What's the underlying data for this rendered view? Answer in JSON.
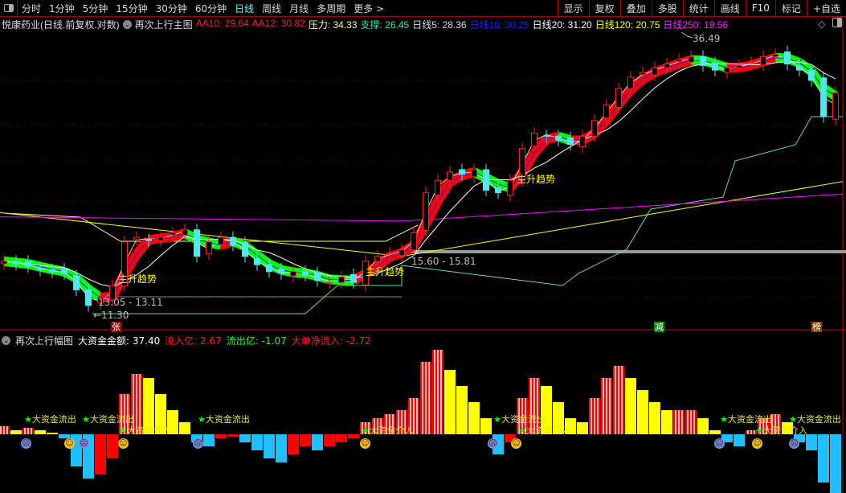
{
  "toolbar": {
    "periods": [
      "分时",
      "1分钟",
      "5分钟",
      "15分钟",
      "30分钟",
      "60分钟",
      "日线",
      "周线",
      "月线",
      "多周期",
      "更多 >"
    ],
    "active": "日线",
    "buttons": [
      "显示",
      "复权",
      "叠加",
      "多股",
      "统计",
      "画线",
      "F10",
      "标记",
      "+自选"
    ]
  },
  "main": {
    "stock_title": "悦康药业(日线.前复权.对数)",
    "indicator": "再次上行主图",
    "values": [
      {
        "label": "AA10: 29.64",
        "color": "#ff2020"
      },
      {
        "label": "AA12: 30.82",
        "color": "#ff2020"
      },
      {
        "label": "压力: 34.33",
        "color": "#ffff80"
      },
      {
        "label": "支撑: 26.45",
        "color": "#40e0a0"
      },
      {
        "label": "日线5: 28.36",
        "color": "#dddddd"
      },
      {
        "label": "日线10: 30.25",
        "color": "#2020ff"
      },
      {
        "label": "日线20: 31.20",
        "color": "#ffffff"
      },
      {
        "label": "日线120: 20.75",
        "color": "#ffff00"
      },
      {
        "label": "日线250: 19.56",
        "color": "#ff20ff"
      }
    ],
    "annotations": {
      "trend1": "主升趋势",
      "trend2": "主升趋势",
      "trend3": "主升趋势",
      "range1": "13.05 - 13.11",
      "low": "←11.30",
      "range2": "15.60 - 15.81",
      "high": "36.49",
      "badge_zhang": "张",
      "badge_jian": "减",
      "badge_bang": "榜"
    }
  },
  "sub": {
    "indicator": "再次上行幅图",
    "values": [
      {
        "label": "大资金金额: 37.40",
        "color": "#ffffff"
      },
      {
        "label": "流入亿: 2.67",
        "color": "#ff2020"
      },
      {
        "label": "流出亿: -1.07",
        "color": "#20ff20"
      },
      {
        "label": "大单净流入: -2.72",
        "color": "#ff2020"
      }
    ],
    "flow_out": "大资金流出",
    "flow_in": "大资金介入"
  },
  "chart_data": {
    "type": "candlestick",
    "scale": "log",
    "closes": [
      14.6,
      14.45,
      14.3,
      14.1,
      14.0,
      13.9,
      13.0,
      12.2,
      12.6,
      13.2,
      15.8,
      16.1,
      15.9,
      16.1,
      16.4,
      16.6,
      14.9,
      15.8,
      16.1,
      15.6,
      14.9,
      14.4,
      14.0,
      13.9,
      14.0,
      13.8,
      13.5,
      13.4,
      13.7,
      13.4,
      14.6,
      14.9,
      15.1,
      15.3,
      16.4,
      19.3,
      20.3,
      21.0,
      20.8,
      21.2,
      19.5,
      19.3,
      20.3,
      23.1,
      24.6,
      24.3,
      23.9,
      23.5,
      24.3,
      25.9,
      27.6,
      29.5,
      30.9,
      31.5,
      32.1,
      32.6,
      33.2,
      33.6,
      32.4,
      31.8,
      32.1,
      32.4,
      32.8,
      33.6,
      33.9,
      32.6,
      31.8,
      30.5,
      26.3,
      29.0
    ],
    "ma120": [
      17.8,
      14.9,
      20.2
    ],
    "ma250": [
      17.5,
      17.2,
      19.2
    ],
    "high": 36.49,
    "low": 11.3,
    "flow": [
      10,
      5,
      8,
      5,
      2,
      -5,
      -40,
      -55,
      -50,
      -30,
      50,
      75,
      70,
      50,
      30,
      15,
      -10,
      -15,
      -5,
      -3,
      -10,
      -20,
      -30,
      -35,
      -25,
      -15,
      -20,
      -15,
      -10,
      -5,
      15,
      20,
      25,
      30,
      45,
      90,
      105,
      80,
      60,
      40,
      20,
      -25,
      -10,
      45,
      70,
      60,
      40,
      20,
      15,
      45,
      70,
      85,
      70,
      55,
      40,
      30,
      30,
      30,
      20,
      5,
      -10,
      -15,
      5,
      20,
      25,
      15,
      -10,
      -20,
      -60,
      -75
    ],
    "colors": {
      "up": "#ff2020",
      "down": "#50e8f0",
      "flow_up": "#ff0000",
      "flow_down_pos": "#ffff00",
      "flow_neg": "#20c0ff"
    }
  }
}
